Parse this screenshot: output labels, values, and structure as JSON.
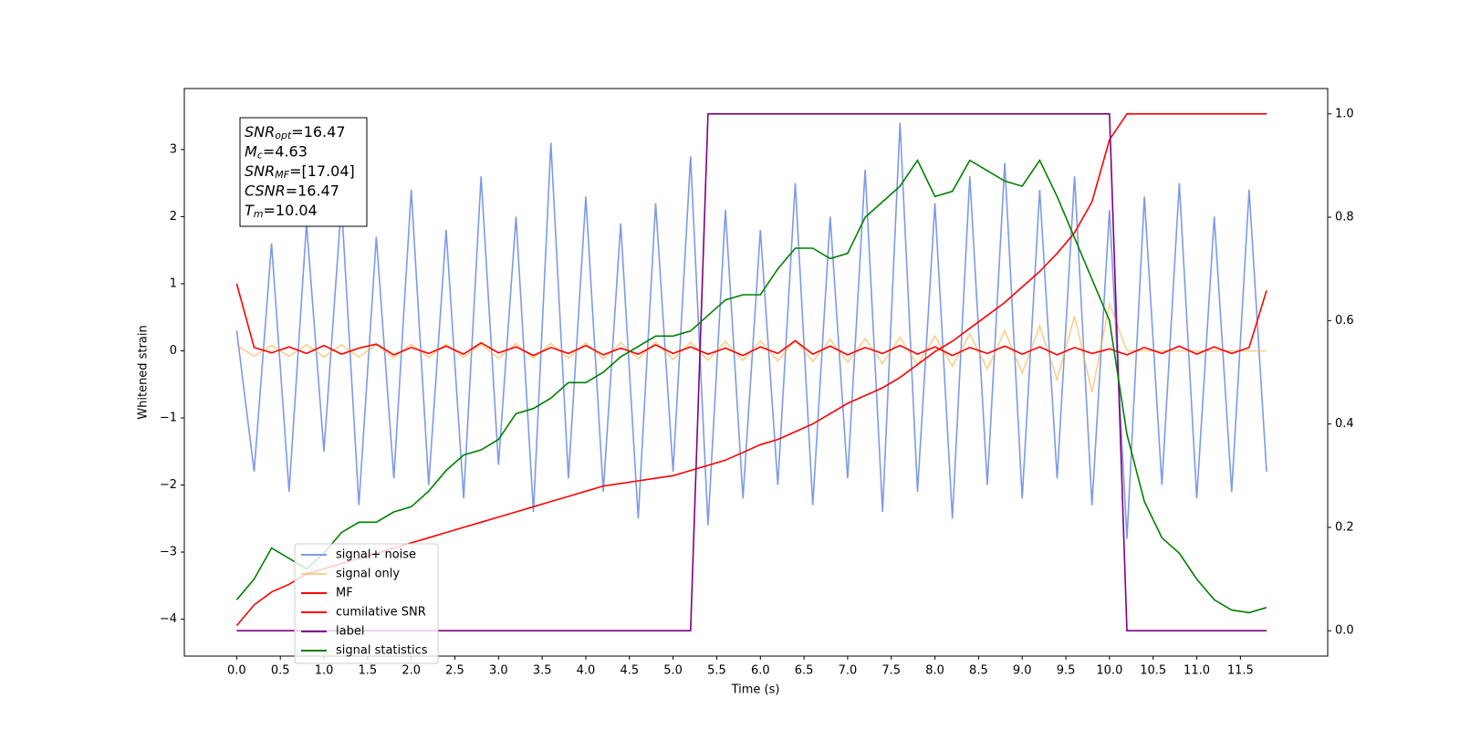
{
  "chart_data": {
    "type": "line",
    "xlabel": "Time (s)",
    "ylabel": "Whitened strain",
    "annotation": [
      {
        "main": "SNR",
        "sub": "opt",
        "rest": "=16.47"
      },
      {
        "main": "M",
        "sub": "c",
        "rest": "=4.63"
      },
      {
        "main": "SNR",
        "sub": "MF",
        "rest": "=[17.04]"
      },
      {
        "main": "CSNR",
        "rest": "=16.47"
      },
      {
        "main": "T",
        "sub": "m",
        "rest": "=10.04"
      }
    ],
    "x": [
      0,
      0.2,
      0.4,
      0.6,
      0.8,
      1.0,
      1.2,
      1.4,
      1.6,
      1.8,
      2.0,
      2.2,
      2.4,
      2.6,
      2.8,
      3.0,
      3.2,
      3.4,
      3.6,
      3.8,
      4.0,
      4.2,
      4.4,
      4.6,
      4.8,
      5.0,
      5.2,
      5.4,
      5.6,
      5.8,
      6.0,
      6.2,
      6.4,
      6.6,
      6.8,
      7.0,
      7.2,
      7.4,
      7.6,
      7.8,
      8.0,
      8.2,
      8.4,
      8.6,
      8.8,
      9.0,
      9.2,
      9.4,
      9.6,
      9.8,
      10.0,
      10.2,
      10.4,
      10.6,
      10.8,
      11.0,
      11.2,
      11.4,
      11.6,
      11.8
    ],
    "series": [
      {
        "name": "signal+ noise",
        "color": "#6f8fe6",
        "opacity": 0.9,
        "values": [
          0.3,
          -1.8,
          1.6,
          -2.1,
          1.9,
          -1.5,
          2.2,
          -2.3,
          1.7,
          -1.9,
          2.4,
          -2.0,
          1.8,
          -2.2,
          2.6,
          -1.7,
          2.0,
          -2.4,
          3.1,
          -1.9,
          2.3,
          -2.1,
          1.9,
          -2.5,
          2.2,
          -1.8,
          2.9,
          -2.6,
          2.1,
          -2.2,
          1.8,
          -2.0,
          2.5,
          -2.3,
          2.0,
          -1.9,
          2.7,
          -2.4,
          3.4,
          -2.1,
          2.2,
          -2.5,
          2.6,
          -2.0,
          2.8,
          -2.2,
          2.4,
          -1.9,
          2.6,
          -2.3,
          2.1,
          -2.8,
          2.3,
          -2.0,
          2.5,
          -2.2,
          2.0,
          -2.1,
          2.4,
          -1.8
        ]
      },
      {
        "name": "signal only",
        "color": "#f5b041",
        "opacity": 0.6,
        "values": [
          0.08,
          -0.08,
          0.08,
          -0.08,
          0.09,
          -0.09,
          0.09,
          -0.09,
          0.09,
          -0.1,
          0.1,
          -0.1,
          0.1,
          -0.1,
          0.1,
          -0.11,
          0.11,
          -0.11,
          0.11,
          -0.11,
          0.12,
          -0.12,
          0.12,
          -0.12,
          0.13,
          -0.13,
          0.13,
          -0.14,
          0.14,
          -0.14,
          0.15,
          -0.15,
          0.16,
          -0.16,
          0.17,
          -0.17,
          0.18,
          -0.19,
          0.2,
          -0.21,
          0.22,
          -0.23,
          0.25,
          -0.27,
          0.3,
          -0.33,
          0.37,
          -0.43,
          0.52,
          -0.62,
          0.7,
          0,
          0,
          0,
          0,
          0,
          0,
          0,
          0,
          0
        ]
      },
      {
        "name": "MF",
        "color": "#ff0000",
        "opacity": 1,
        "values": [
          1.0,
          0.05,
          -0.03,
          0.06,
          -0.04,
          0.08,
          -0.05,
          0.04,
          0.1,
          -0.06,
          0.05,
          -0.04,
          0.07,
          -0.05,
          0.12,
          -0.03,
          0.06,
          -0.07,
          0.05,
          -0.04,
          0.08,
          -0.06,
          0.04,
          -0.05,
          0.09,
          -0.04,
          0.06,
          -0.05,
          0.04,
          -0.07,
          0.06,
          -0.04,
          0.15,
          -0.05,
          0.07,
          -0.06,
          0.05,
          -0.04,
          0.08,
          -0.05,
          0.06,
          -0.07,
          0.05,
          -0.04,
          0.07,
          -0.05,
          0.06,
          -0.06,
          0.05,
          -0.04,
          0.03,
          -0.06,
          0.05,
          -0.04,
          0.07,
          -0.05,
          0.06,
          -0.04,
          0.05,
          0.9
        ]
      },
      {
        "name": "cumilative SNR",
        "color": "#ff0000",
        "opacity": 1,
        "axis": "y2",
        "values": [
          0.01,
          0.05,
          0.075,
          0.09,
          0.11,
          0.12,
          0.13,
          0.14,
          0.15,
          0.16,
          0.17,
          0.18,
          0.19,
          0.2,
          0.21,
          0.22,
          0.23,
          0.24,
          0.25,
          0.26,
          0.27,
          0.28,
          0.285,
          0.29,
          0.295,
          0.3,
          0.31,
          0.32,
          0.33,
          0.345,
          0.36,
          0.37,
          0.385,
          0.4,
          0.42,
          0.44,
          0.455,
          0.47,
          0.49,
          0.515,
          0.54,
          0.56,
          0.585,
          0.61,
          0.635,
          0.665,
          0.695,
          0.73,
          0.77,
          0.83,
          0.95,
          1.0,
          1.0,
          1.0,
          1.0,
          1.0,
          1.0,
          1.0,
          1.0,
          1.0
        ]
      },
      {
        "name": "label",
        "color": "#800080",
        "opacity": 1,
        "axis": "y2",
        "values": [
          0,
          0,
          0,
          0,
          0,
          0,
          0,
          0,
          0,
          0,
          0,
          0,
          0,
          0,
          0,
          0,
          0,
          0,
          0,
          0,
          0,
          0,
          0,
          0,
          0,
          0,
          0,
          1,
          1,
          1,
          1,
          1,
          1,
          1,
          1,
          1,
          1,
          1,
          1,
          1,
          1,
          1,
          1,
          1,
          1,
          1,
          1,
          1,
          1,
          1,
          1,
          0,
          0,
          0,
          0,
          0,
          0,
          0,
          0,
          0
        ]
      },
      {
        "name": "signal statistics",
        "color": "#008000",
        "opacity": 1,
        "axis": "y2",
        "values": [
          0.06,
          0.1,
          0.16,
          0.14,
          0.12,
          0.15,
          0.19,
          0.21,
          0.21,
          0.23,
          0.24,
          0.27,
          0.31,
          0.34,
          0.35,
          0.37,
          0.42,
          0.43,
          0.45,
          0.48,
          0.48,
          0.5,
          0.53,
          0.55,
          0.57,
          0.57,
          0.58,
          0.61,
          0.64,
          0.65,
          0.65,
          0.7,
          0.74,
          0.74,
          0.72,
          0.73,
          0.8,
          0.83,
          0.86,
          0.91,
          0.84,
          0.85,
          0.91,
          0.89,
          0.87,
          0.86,
          0.91,
          0.84,
          0.76,
          0.68,
          0.6,
          0.38,
          0.25,
          0.18,
          0.15,
          0.1,
          0.06,
          0.04,
          0.035,
          0.045
        ]
      }
    ],
    "xlim": [
      -0.6,
      12.5
    ],
    "xticks": [
      {
        "value": 0,
        "label": "0.0"
      },
      {
        "value": 0.5,
        "label": "0.5"
      },
      {
        "value": 1,
        "label": "1.0"
      },
      {
        "value": 1.5,
        "label": "1.5"
      },
      {
        "value": 2,
        "label": "2.0"
      },
      {
        "value": 2.5,
        "label": "2.5"
      },
      {
        "value": 3,
        "label": "3.0"
      },
      {
        "value": 3.5,
        "label": "3.5"
      },
      {
        "value": 4,
        "label": "4.0"
      },
      {
        "value": 4.5,
        "label": "4.5"
      },
      {
        "value": 5,
        "label": "5.0"
      },
      {
        "value": 5.5,
        "label": "5.5"
      },
      {
        "value": 6,
        "label": "6.0"
      },
      {
        "value": 6.5,
        "label": "6.5"
      },
      {
        "value": 7,
        "label": "7.0"
      },
      {
        "value": 7.5,
        "label": "7.5"
      },
      {
        "value": 8,
        "label": "8.0"
      },
      {
        "value": 8.5,
        "label": "8.5"
      },
      {
        "value": 9,
        "label": "9.0"
      },
      {
        "value": 9.5,
        "label": "9.5"
      },
      {
        "value": 10,
        "label": "10.0"
      },
      {
        "value": 10.5,
        "label": "10.5"
      },
      {
        "value": 11,
        "label": "11.0"
      },
      {
        "value": 11.5,
        "label": "11.5"
      }
    ],
    "ylim": [
      -4.55,
      3.91
    ],
    "yticks": [
      {
        "value": -4,
        "label": "−4"
      },
      {
        "value": -3,
        "label": "−3"
      },
      {
        "value": -2,
        "label": "−2"
      },
      {
        "value": -1,
        "label": "−1"
      },
      0,
      1,
      2,
      3
    ],
    "y2lim": [
      -0.049,
      1.049
    ],
    "y2ticks": [
      {
        "value": 0,
        "label": "0.0"
      },
      0.2,
      0.4,
      0.6,
      0.8,
      {
        "value": 1,
        "label": "1.0"
      }
    ],
    "grid": false
  }
}
